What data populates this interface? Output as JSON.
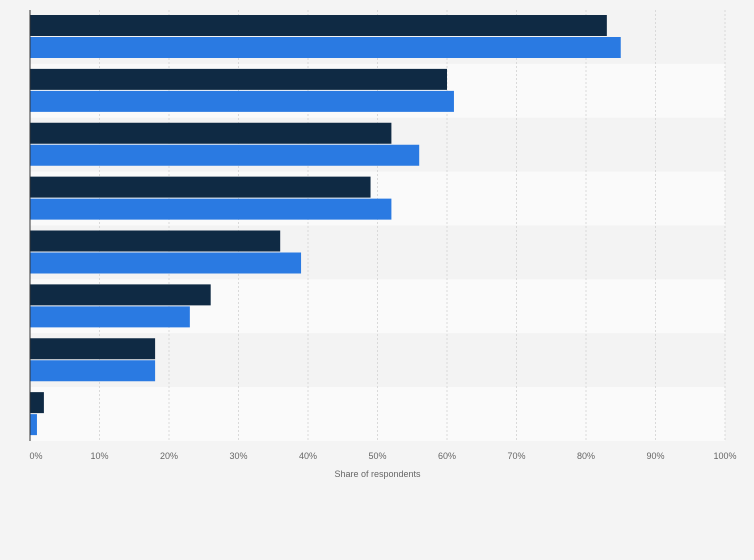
{
  "chart_data": {
    "type": "bar",
    "orientation": "horizontal",
    "categories": [
      "",
      "",
      "",
      "",
      "",
      "",
      "",
      ""
    ],
    "series": [
      {
        "values": [
          83,
          60,
          52,
          49,
          36,
          26,
          18,
          2
        ],
        "color": "#0f2a44"
      },
      {
        "values": [
          85,
          61,
          56,
          52,
          39,
          23,
          18,
          1
        ],
        "color": "#2a7ae2"
      }
    ],
    "xlabel": "Share of respondents",
    "xlim": [
      0,
      100
    ],
    "x_ticks": [
      "0%",
      "10%",
      "20%",
      "30%",
      "40%",
      "50%",
      "60%",
      "70%",
      "80%",
      "90%",
      "100%"
    ],
    "grid": true,
    "legend": "none",
    "band_colors": [
      "#f3f3f3",
      "#fafafa"
    ]
  }
}
